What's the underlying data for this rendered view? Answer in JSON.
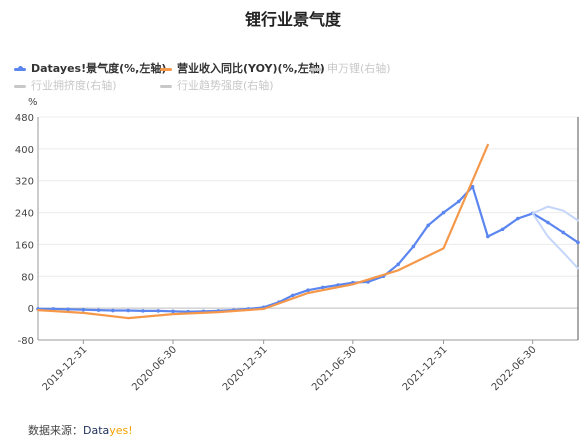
{
  "title": "锂行业景气度",
  "legend": [
    {
      "label": "Datayes!景气度(%,左轴)",
      "color": "#5b86f0",
      "active": true,
      "marker": true
    },
    {
      "label": "营业收入同比(YOY)(%,左轴)",
      "color": "#f5984a",
      "active": true,
      "marker": false
    },
    {
      "label": "申万锂(右轴)",
      "color": "#c8c8c8",
      "active": false,
      "marker": false
    },
    {
      "label": "行业拥挤度(右轴)",
      "color": "#c8c8c8",
      "active": false,
      "marker": false
    },
    {
      "label": "行业趋势强度(右轴)",
      "color": "#c8c8c8",
      "active": false,
      "marker": false
    }
  ],
  "y_unit": "%",
  "footer": {
    "prefix": "数据来源：",
    "brand_a": "Data",
    "brand_b": "yes!"
  },
  "chart_data": {
    "type": "line",
    "ylim": [
      -80,
      480
    ],
    "yticks": [
      -80,
      0,
      80,
      160,
      240,
      320,
      400,
      480
    ],
    "xticks": [
      "2019-12-31",
      "2020-06-30",
      "2020-12-31",
      "2021-06-30",
      "2021-12-31",
      "2022-06-30"
    ],
    "x_start": "2019-09-30",
    "x_end": "2022-09-30",
    "series": [
      {
        "name": "Datayes!景气度(%,左轴)",
        "color": "#5b86f0",
        "markers": true,
        "x": [
          "2019-09-30",
          "2019-10-31",
          "2019-11-30",
          "2019-12-31",
          "2020-01-31",
          "2020-02-29",
          "2020-03-31",
          "2020-04-30",
          "2020-05-31",
          "2020-06-30",
          "2020-07-31",
          "2020-08-31",
          "2020-09-30",
          "2020-10-31",
          "2020-11-30",
          "2020-12-31",
          "2021-01-31",
          "2021-02-28",
          "2021-03-31",
          "2021-04-30",
          "2021-05-31",
          "2021-06-30",
          "2021-07-31",
          "2021-08-31",
          "2021-09-30",
          "2021-10-31",
          "2021-11-30",
          "2021-12-31",
          "2022-01-31",
          "2022-02-28",
          "2022-03-31",
          "2022-04-30",
          "2022-05-31",
          "2022-06-30",
          "2022-07-31",
          "2022-08-31",
          "2022-09-30"
        ],
        "values": [
          -2,
          -2,
          -3,
          -4,
          -5,
          -6,
          -6,
          -7,
          -7,
          -8,
          -9,
          -8,
          -7,
          -5,
          -2,
          2,
          15,
          32,
          45,
          52,
          58,
          64,
          66,
          80,
          110,
          155,
          208,
          240,
          268,
          305,
          180,
          198,
          225,
          238,
          215,
          190,
          165
        ]
      },
      {
        "name": "营业收入同比(YOY)(%,左轴)",
        "color": "#f5984a",
        "markers": false,
        "x": [
          "2019-09-30",
          "2019-12-31",
          "2020-03-31",
          "2020-06-30",
          "2020-09-30",
          "2020-12-31",
          "2021-03-31",
          "2021-06-30",
          "2021-09-30",
          "2021-12-31",
          "2022-03-31"
        ],
        "values": [
          -5,
          -12,
          -25,
          -15,
          -10,
          -2,
          38,
          60,
          95,
          150,
          410
        ]
      },
      {
        "name": "",
        "color": "#c6d6fa",
        "markers": false,
        "x": [
          "2022-06-30",
          "2022-07-31",
          "2022-08-31",
          "2022-09-30"
        ],
        "values": [
          238,
          255,
          245,
          220
        ]
      },
      {
        "name": "",
        "color": "#c6d6fa",
        "markers": false,
        "x": [
          "2022-06-30",
          "2022-07-31",
          "2022-08-31",
          "2022-09-30"
        ],
        "values": [
          238,
          180,
          140,
          100
        ]
      }
    ]
  }
}
